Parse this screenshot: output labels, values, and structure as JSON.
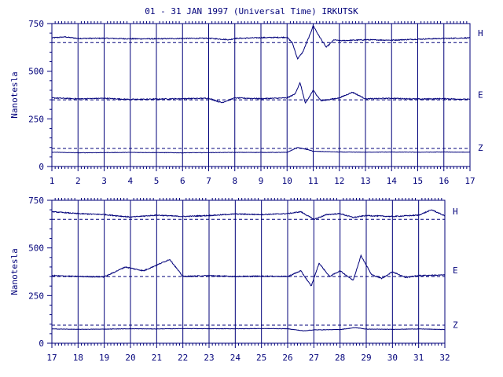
{
  "title": "01 - 31 JAN 1997 (Universal Time) IRKUTSK",
  "colors": {
    "ink": "#00007a",
    "background": "#ffffff"
  },
  "chart_data": [
    {
      "type": "line",
      "xlabel": "",
      "ylabel": "Nanotesla",
      "x_ticks": [
        "1",
        "2",
        "3",
        "4",
        "5",
        "6",
        "7",
        "8",
        "9",
        "10",
        "11",
        "12",
        "13",
        "14",
        "15",
        "16",
        "17"
      ],
      "xlim": [
        1,
        17
      ],
      "ylim": [
        0,
        750
      ],
      "y_ticks": [
        "0",
        "250",
        "500",
        "750"
      ],
      "grid": "vertical lines at each day",
      "series": [
        {
          "name": "H",
          "baseline": 650,
          "values": [
            [
              1,
              675
            ],
            [
              1.5,
              680
            ],
            [
              2,
              672
            ],
            [
              3,
              673
            ],
            [
              4,
              670
            ],
            [
              5,
              670
            ],
            [
              6,
              672
            ],
            [
              7,
              673
            ],
            [
              7.8,
              665
            ],
            [
              8,
              672
            ],
            [
              9,
              676
            ],
            [
              10,
              678
            ],
            [
              10.2,
              650
            ],
            [
              10.4,
              565
            ],
            [
              10.6,
              600
            ],
            [
              10.9,
              700
            ],
            [
              11,
              740
            ],
            [
              11.2,
              690
            ],
            [
              11.5,
              625
            ],
            [
              11.8,
              665
            ],
            [
              12,
              660
            ],
            [
              13,
              665
            ],
            [
              14,
              663
            ],
            [
              15,
              668
            ],
            [
              16,
              672
            ],
            [
              17,
              675
            ]
          ]
        },
        {
          "name": "E",
          "baseline": 350,
          "values": [
            [
              1,
              360
            ],
            [
              2,
              355
            ],
            [
              3,
              358
            ],
            [
              4,
              352
            ],
            [
              5,
              354
            ],
            [
              6,
              356
            ],
            [
              7,
              358
            ],
            [
              7.5,
              335
            ],
            [
              8,
              360
            ],
            [
              9,
              356
            ],
            [
              10,
              360
            ],
            [
              10.3,
              380
            ],
            [
              10.5,
              440
            ],
            [
              10.7,
              330
            ],
            [
              11,
              400
            ],
            [
              11.3,
              345
            ],
            [
              12,
              360
            ],
            [
              12.5,
              390
            ],
            [
              13,
              355
            ],
            [
              14,
              358
            ],
            [
              15,
              354
            ],
            [
              16,
              356
            ],
            [
              17,
              352
            ]
          ]
        },
        {
          "name": "Z",
          "baseline": 95,
          "values": [
            [
              1,
              75
            ],
            [
              2,
              72
            ],
            [
              3,
              73
            ],
            [
              4,
              74
            ],
            [
              5,
              73
            ],
            [
              6,
              72
            ],
            [
              7,
              73
            ],
            [
              8,
              74
            ],
            [
              9,
              74
            ],
            [
              10,
              74
            ],
            [
              10.4,
              100
            ],
            [
              10.8,
              88
            ],
            [
              11,
              80
            ],
            [
              12,
              76
            ],
            [
              13,
              75
            ],
            [
              14,
              76
            ],
            [
              15,
              75
            ],
            [
              16,
              76
            ],
            [
              17,
              75
            ]
          ]
        }
      ]
    },
    {
      "type": "line",
      "xlabel": "",
      "ylabel": "Nanotesla",
      "x_ticks": [
        "17",
        "18",
        "19",
        "20",
        "21",
        "22",
        "23",
        "24",
        "25",
        "26",
        "27",
        "28",
        "29",
        "30",
        "31",
        "32"
      ],
      "xlim": [
        17,
        32
      ],
      "ylim": [
        0,
        750
      ],
      "y_ticks": [
        "0",
        "250",
        "500",
        "750"
      ],
      "grid": "vertical lines at each day",
      "series": [
        {
          "name": "H",
          "baseline": 650,
          "values": [
            [
              17,
              690
            ],
            [
              18,
              680
            ],
            [
              19,
              675
            ],
            [
              20,
              662
            ],
            [
              21,
              672
            ],
            [
              22,
              665
            ],
            [
              23,
              670
            ],
            [
              24,
              678
            ],
            [
              25,
              675
            ],
            [
              26,
              680
            ],
            [
              26.5,
              690
            ],
            [
              27,
              650
            ],
            [
              27.5,
              675
            ],
            [
              28,
              680
            ],
            [
              28.5,
              660
            ],
            [
              29,
              670
            ],
            [
              30,
              665
            ],
            [
              31,
              672
            ],
            [
              31.5,
              700
            ],
            [
              32,
              668
            ]
          ]
        },
        {
          "name": "E",
          "baseline": 350,
          "values": [
            [
              17,
              355
            ],
            [
              18,
              350
            ],
            [
              19,
              348
            ],
            [
              19.8,
              400
            ],
            [
              20.5,
              380
            ],
            [
              21.5,
              440
            ],
            [
              22,
              350
            ],
            [
              23,
              355
            ],
            [
              24,
              350
            ],
            [
              25,
              352
            ],
            [
              26,
              350
            ],
            [
              26.5,
              380
            ],
            [
              26.9,
              300
            ],
            [
              27.2,
              420
            ],
            [
              27.6,
              350
            ],
            [
              28,
              380
            ],
            [
              28.5,
              330
            ],
            [
              28.8,
              460
            ],
            [
              29.2,
              360
            ],
            [
              29.6,
              340
            ],
            [
              30,
              375
            ],
            [
              30.5,
              345
            ],
            [
              31,
              355
            ],
            [
              32,
              358
            ]
          ]
        },
        {
          "name": "Z",
          "baseline": 95,
          "values": [
            [
              17,
              75
            ],
            [
              18,
              73
            ],
            [
              19,
              74
            ],
            [
              20,
              76
            ],
            [
              21,
              75
            ],
            [
              22,
              77
            ],
            [
              23,
              76
            ],
            [
              24,
              76
            ],
            [
              25,
              77
            ],
            [
              26,
              76
            ],
            [
              26.6,
              65
            ],
            [
              27,
              70
            ],
            [
              28,
              72
            ],
            [
              28.6,
              82
            ],
            [
              29,
              74
            ],
            [
              30,
              73
            ],
            [
              31,
              75
            ],
            [
              32,
              72
            ]
          ]
        }
      ]
    }
  ]
}
